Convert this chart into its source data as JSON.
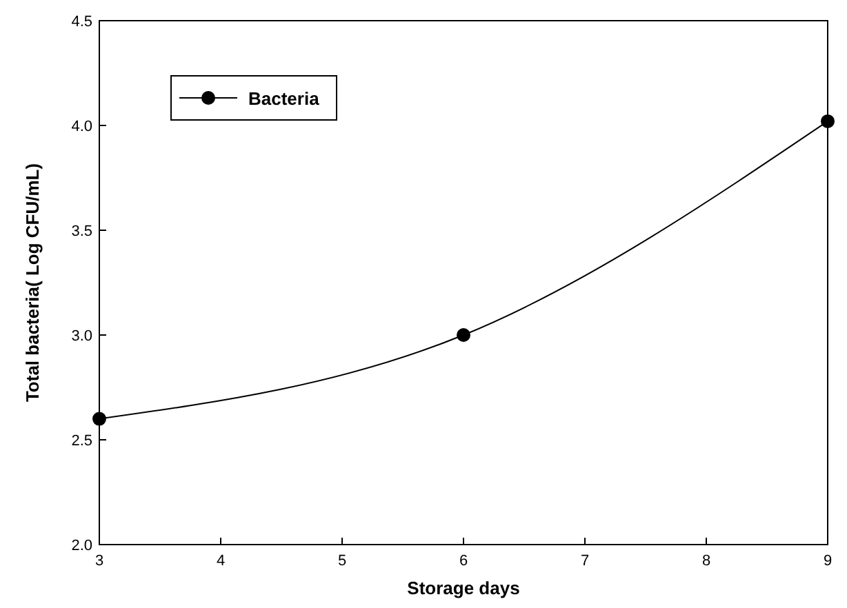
{
  "chart_data": {
    "type": "line",
    "xlabel": "Storage days",
    "ylabel": "Total bacteria( Log CFU/mL)",
    "x": [
      3,
      6,
      9
    ],
    "series": [
      {
        "name": "Bacteria",
        "color": "#000000",
        "values": [
          2.6,
          3.0,
          4.02
        ]
      }
    ],
    "xlim": [
      3,
      9
    ],
    "xticks": [
      3,
      4,
      5,
      6,
      7,
      8,
      9
    ],
    "ylim": [
      2.0,
      4.5
    ],
    "yticks": [
      {
        "value": 2.0,
        "label": "2.0"
      },
      {
        "value": 2.5,
        "label": "2.5"
      },
      {
        "value": 3.0,
        "label": "3.0"
      },
      {
        "value": 3.5,
        "label": "3.5"
      },
      {
        "value": 4.0,
        "label": "4.0"
      },
      {
        "value": 4.5,
        "label": "4.5"
      }
    ],
    "marker": "circle",
    "line_style": "solid",
    "legend": "top left",
    "grid": false
  }
}
